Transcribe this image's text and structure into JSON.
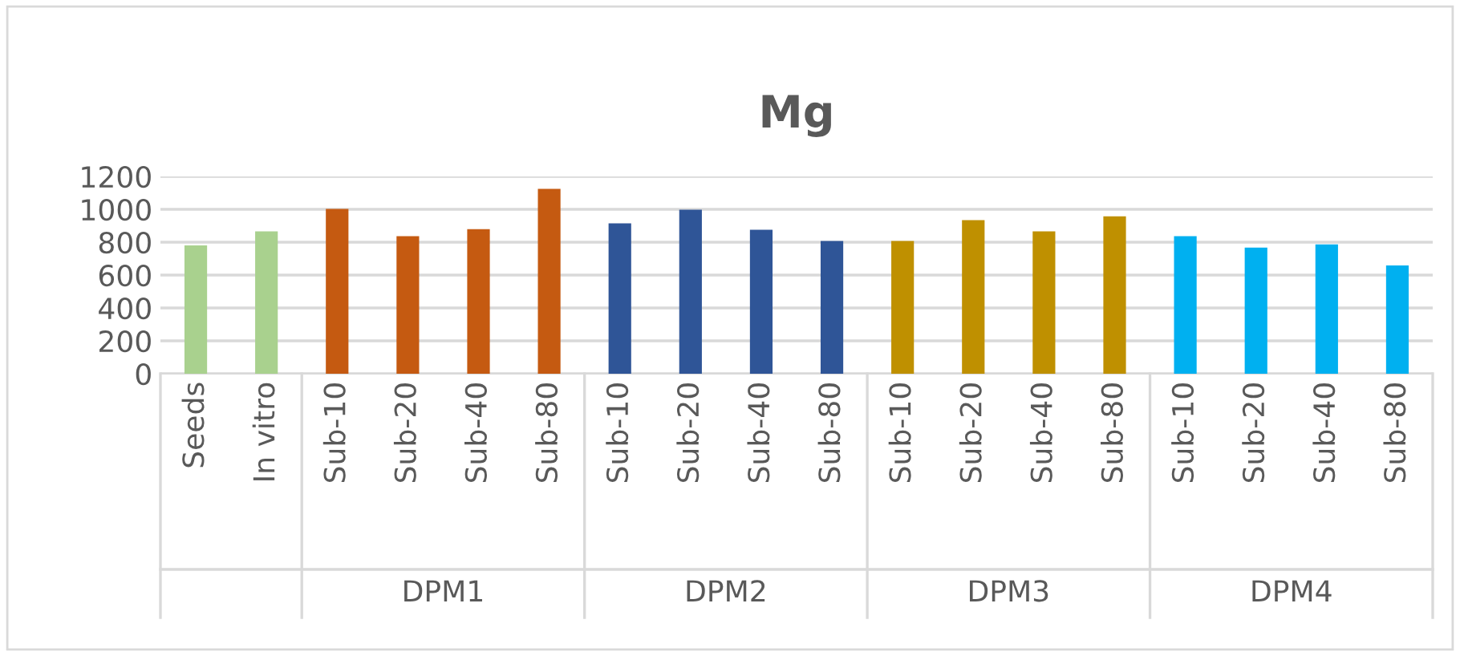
{
  "chart_data": {
    "type": "bar",
    "title": "Mg",
    "categories": [
      "Seeds",
      "In vitro",
      "Sub-10",
      "Sub-20",
      "Sub-40",
      "Sub-80",
      "Sub-10",
      "Sub-20",
      "Sub-40",
      "Sub-80",
      "Sub-10",
      "Sub-20",
      "Sub-40",
      "Sub-80",
      "Sub-10",
      "Sub-20",
      "Sub-40",
      "Sub-80"
    ],
    "values": [
      780,
      866,
      1003,
      836,
      879,
      1125,
      915,
      997,
      875,
      807,
      807,
      934,
      866,
      957,
      836,
      767,
      787,
      659
    ],
    "colors": [
      "#a9d18e",
      "#a9d18e",
      "#c55a11",
      "#c55a11",
      "#c55a11",
      "#c55a11",
      "#2f5597",
      "#2f5597",
      "#2f5597",
      "#2f5597",
      "#bf9000",
      "#bf9000",
      "#bf9000",
      "#bf9000",
      "#00b0f0",
      "#00b0f0",
      "#00b0f0",
      "#00b0f0"
    ],
    "annotations": [
      "DPM1",
      "DPM2",
      "DPM3",
      "DPM4"
    ],
    "ylim": [
      0,
      1200
    ],
    "yticks": [
      0,
      200,
      400,
      600,
      800,
      1000,
      1200
    ],
    "grid": "y",
    "legend": false
  }
}
